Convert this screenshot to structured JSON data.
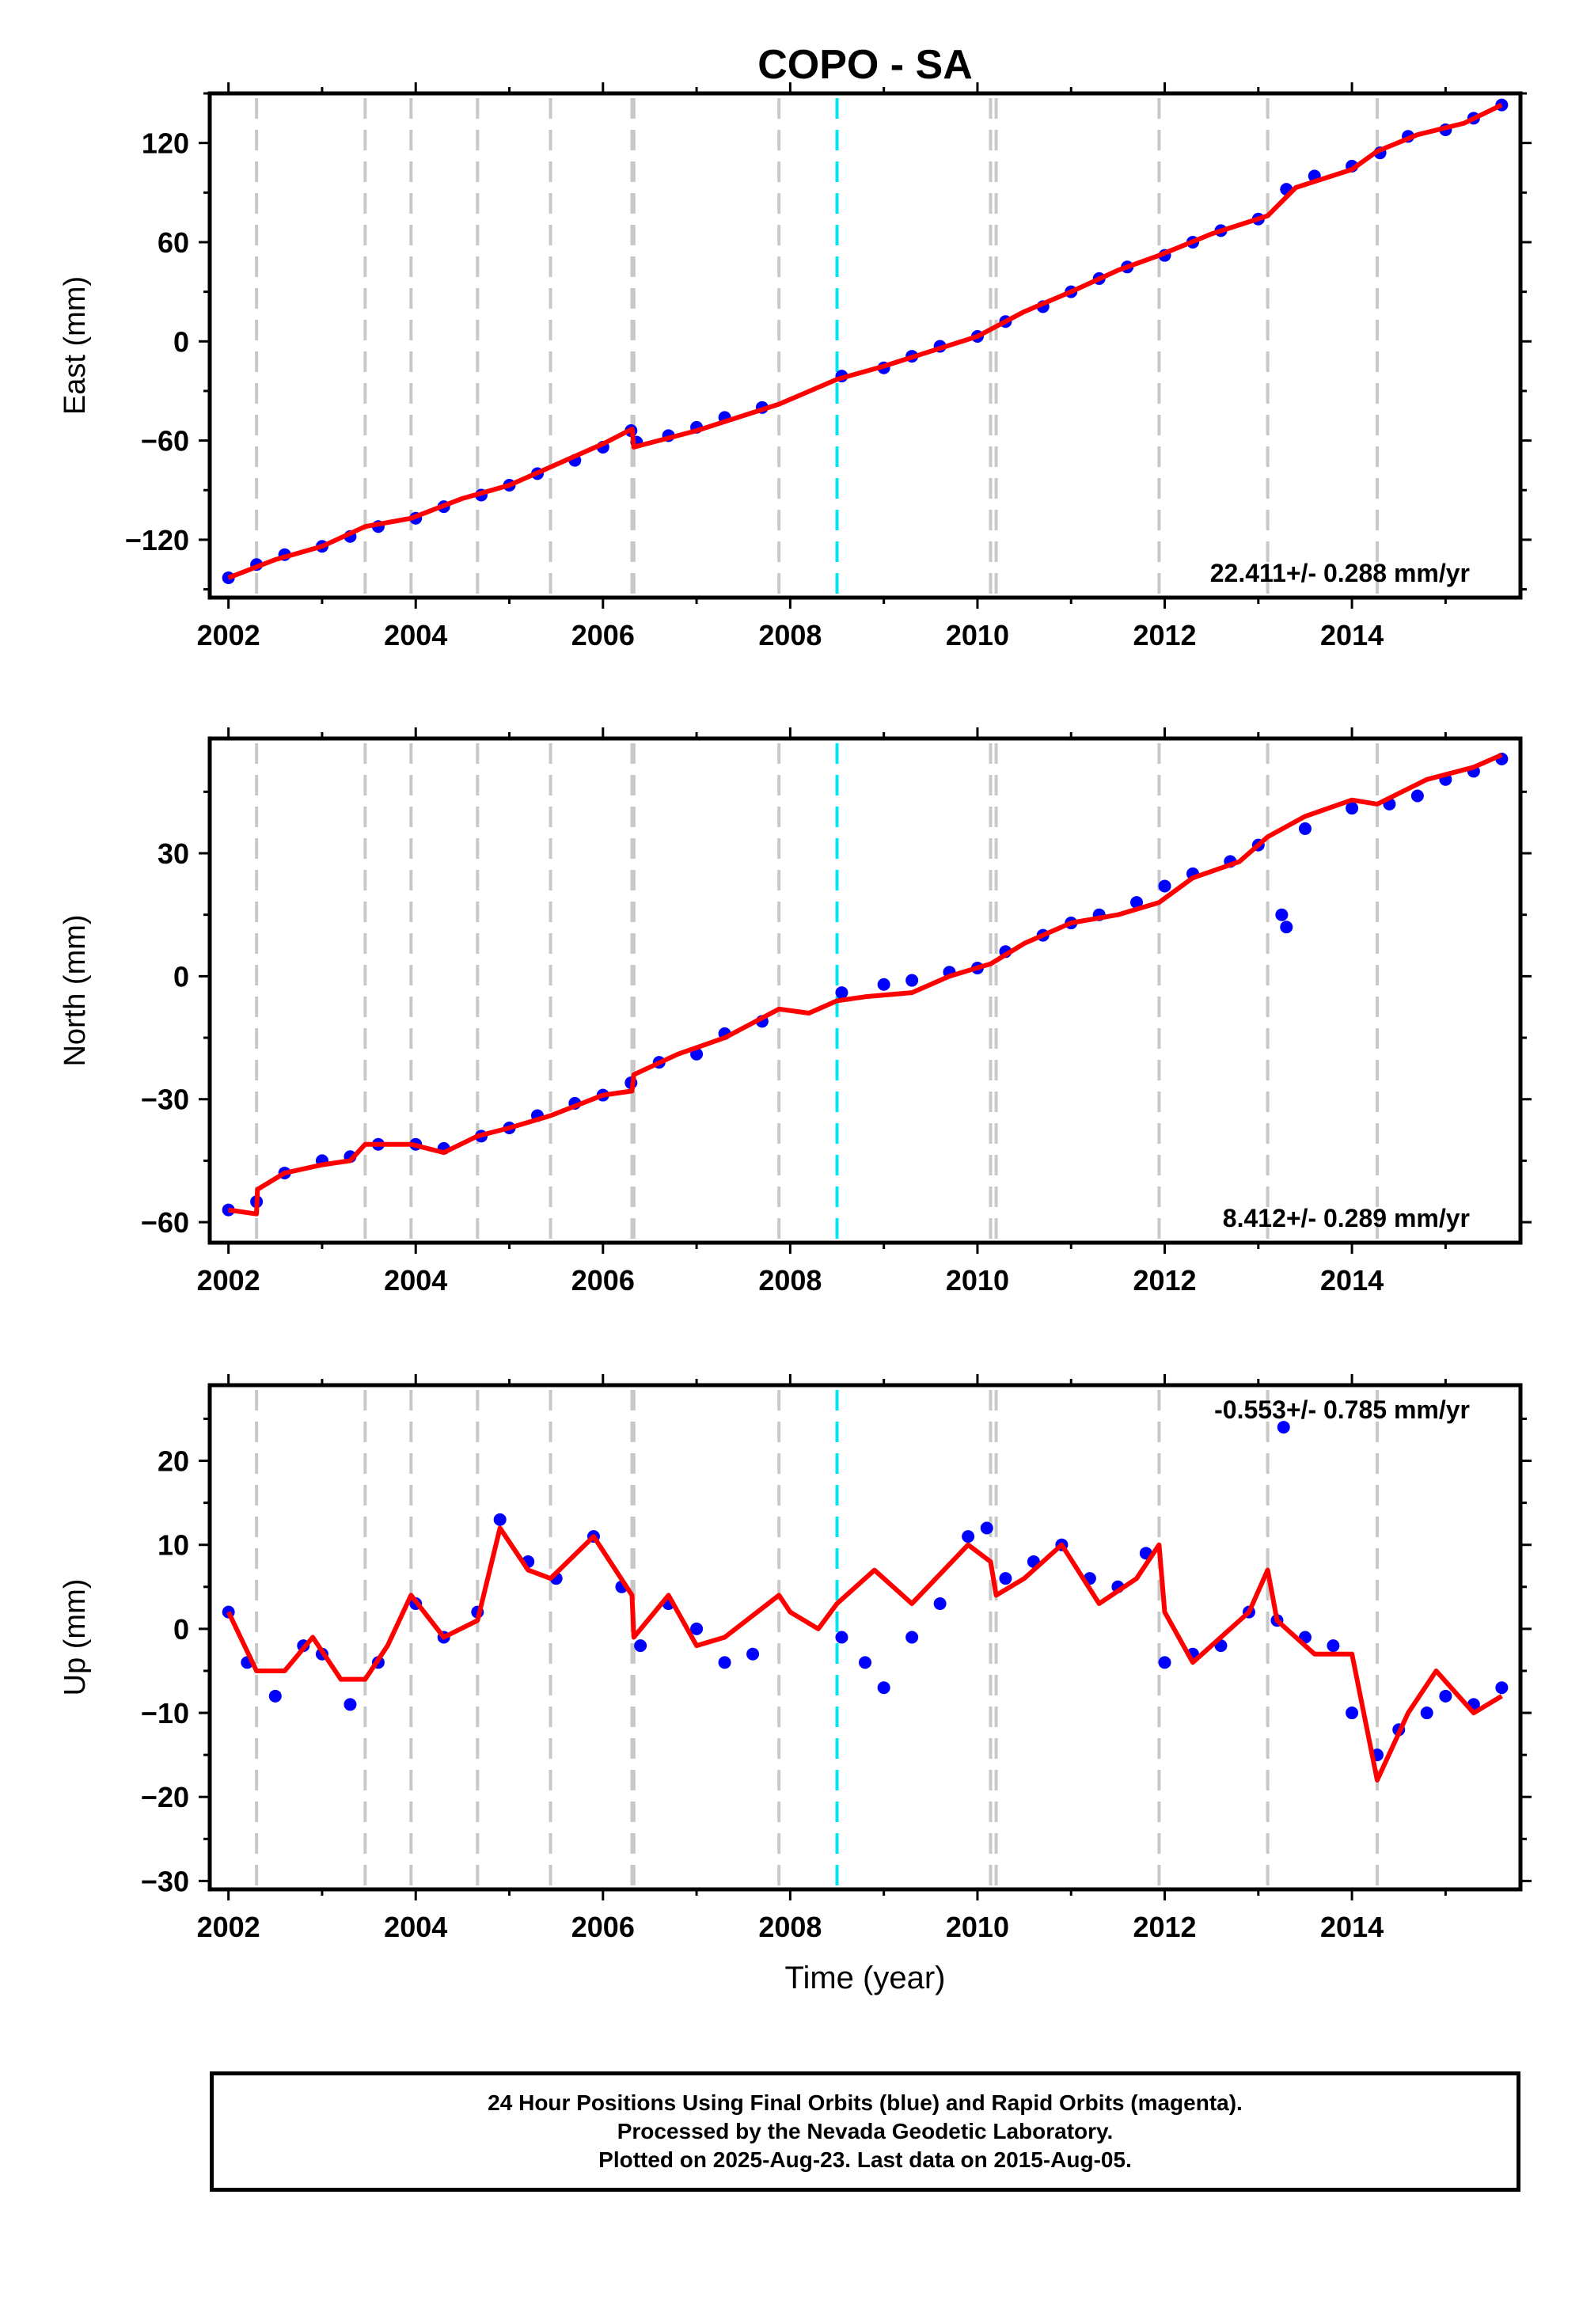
{
  "title": "COPO - SA",
  "colors": {
    "observations": "#0000ff",
    "model": "#ff0000",
    "event_line": "#c8c8c8",
    "equipment_line": "#00e5ee",
    "frame": "#000000"
  },
  "x_axis": {
    "label": "Time (year)",
    "range": [
      2001.8,
      2015.8
    ],
    "ticks": [
      2002,
      2004,
      2006,
      2008,
      2010,
      2012,
      2014
    ],
    "tick_labels": [
      "2002",
      "2004",
      "2006",
      "2008",
      "2010",
      "2012",
      "2014"
    ]
  },
  "event_lines": [
    2002.3,
    2003.46,
    2003.95,
    2004.66,
    2005.44,
    2006.31,
    2006.33,
    2007.88,
    2010.14,
    2010.2,
    2011.94,
    2013.1,
    2014.27
  ],
  "equipment_lines": [
    2008.5
  ],
  "footer": {
    "line1": "24 Hour Positions Using Final Orbits (blue) and Rapid Orbits (magenta).",
    "line2": "Processed by the Nevada Geodetic Laboratory.",
    "line3": "Plotted on 2025-Aug-23. Last data on 2015-Aug-05."
  },
  "chart_data": [
    {
      "type": "scatter",
      "component": "east",
      "ylabel": "East (mm)",
      "ylim": [
        -155,
        150
      ],
      "yticks": [
        -120,
        -60,
        0,
        60,
        120
      ],
      "ytick_labels": [
        "−120",
        "−60",
        "0",
        "60",
        "120"
      ],
      "rate_label": "22.411+/- 0.288 mm/yr",
      "rate_position": "bottom-right",
      "series": [
        {
          "name": "observations",
          "x": [
            2002.0,
            2002.3,
            2002.6,
            2003.0,
            2003.3,
            2003.6,
            2004.0,
            2004.3,
            2004.7,
            2005.0,
            2005.3,
            2005.7,
            2006.0,
            2006.3,
            2006.36,
            2006.7,
            2007.0,
            2007.3,
            2007.7,
            2008.55,
            2009.0,
            2009.3,
            2009.6,
            2010.0,
            2010.3,
            2010.7,
            2011.0,
            2011.3,
            2011.6,
            2012.0,
            2012.3,
            2012.6,
            2013.0,
            2013.3,
            2013.6,
            2014.0,
            2014.3,
            2014.6,
            2015.0,
            2015.3,
            2015.6
          ],
          "y": [
            -143,
            -135,
            -129,
            -124,
            -118,
            -112,
            -107,
            -100,
            -93,
            -87,
            -80,
            -72,
            -64,
            -54,
            -61,
            -57,
            -52,
            -46,
            -40,
            -21,
            -16,
            -9,
            -3,
            3,
            12,
            21,
            30,
            38,
            45,
            52,
            60,
            67,
            74,
            92,
            100,
            106,
            114,
            124,
            128,
            135,
            143
          ]
        },
        {
          "name": "model",
          "x": [
            2002.0,
            2002.5,
            2003.0,
            2003.46,
            2003.95,
            2004.5,
            2005.0,
            2005.44,
            2006.0,
            2006.31,
            2006.33,
            2007.0,
            2007.88,
            2008.5,
            2009.0,
            2009.5,
            2010.0,
            2010.5,
            2011.0,
            2011.5,
            2011.94,
            2012.5,
            2013.1,
            2013.4,
            2014.0,
            2014.27,
            2014.7,
            2015.2,
            2015.6
          ],
          "y": [
            -143,
            -132,
            -124,
            -112,
            -107,
            -95,
            -87,
            -76,
            -62,
            -53,
            -64,
            -54,
            -38,
            -23,
            -15,
            -6,
            3,
            18,
            30,
            43,
            52,
            65,
            76,
            93,
            104,
            115,
            125,
            132,
            143
          ]
        }
      ]
    },
    {
      "type": "scatter",
      "component": "north",
      "ylabel": "North (mm)",
      "ylim": [
        -65,
        58
      ],
      "yticks": [
        -60,
        -30,
        0,
        30
      ],
      "ytick_labels": [
        "−60",
        "−30",
        "0",
        "30"
      ],
      "rate_label": "8.412+/- 0.289 mm/yr",
      "rate_position": "bottom-right",
      "series": [
        {
          "name": "observations",
          "x": [
            2002.0,
            2002.3,
            2002.6,
            2003.0,
            2003.3,
            2003.6,
            2004.0,
            2004.3,
            2004.7,
            2005.0,
            2005.3,
            2005.7,
            2006.0,
            2006.3,
            2006.6,
            2007.0,
            2007.3,
            2007.7,
            2008.55,
            2009.0,
            2009.3,
            2009.7,
            2010.0,
            2010.3,
            2010.7,
            2011.0,
            2011.3,
            2011.7,
            2012.0,
            2012.3,
            2012.7,
            2013.0,
            2013.25,
            2013.3,
            2013.5,
            2014.0,
            2014.4,
            2014.7,
            2015.0,
            2015.3,
            2015.6
          ],
          "y": [
            -57,
            -55,
            -48,
            -45,
            -44,
            -41,
            -41,
            -42,
            -39,
            -37,
            -34,
            -31,
            -29,
            -26,
            -21,
            -19,
            -14,
            -11,
            -4,
            -2,
            -1,
            1,
            2,
            6,
            10,
            13,
            15,
            18,
            22,
            25,
            28,
            32,
            15,
            12,
            36,
            41,
            42,
            44,
            48,
            50,
            53
          ]
        },
        {
          "name": "model",
          "x": [
            2002.0,
            2002.3,
            2002.31,
            2002.6,
            2003.0,
            2003.3,
            2003.46,
            2003.95,
            2004.3,
            2004.66,
            2005.0,
            2005.44,
            2006.0,
            2006.31,
            2006.33,
            2006.8,
            2007.3,
            2007.88,
            2008.2,
            2008.5,
            2008.8,
            2009.3,
            2009.7,
            2010.14,
            2010.5,
            2011.0,
            2011.5,
            2011.94,
            2012.3,
            2012.8,
            2013.1,
            2013.5,
            2014.0,
            2014.27,
            2014.8,
            2015.3,
            2015.6
          ],
          "y": [
            -57,
            -58,
            -52,
            -48,
            -46,
            -45,
            -41,
            -41,
            -43,
            -39,
            -37,
            -34,
            -29,
            -28,
            -24,
            -19,
            -15,
            -8,
            -9,
            -6,
            -5,
            -4,
            0,
            3,
            8,
            13,
            15,
            18,
            24,
            28,
            34,
            39,
            43,
            42,
            48,
            51,
            54
          ]
        }
      ]
    },
    {
      "type": "scatter",
      "component": "up",
      "ylabel": "Up (mm)",
      "ylim": [
        -31,
        29
      ],
      "yticks": [
        -30,
        -20,
        -10,
        0,
        10,
        20
      ],
      "ytick_labels": [
        "−30",
        "−20",
        "−10",
        "0",
        "10",
        "20"
      ],
      "rate_label": "-0.553+/- 0.785 mm/yr",
      "rate_position": "top-right",
      "series": [
        {
          "name": "observations",
          "x": [
            2002.0,
            2002.2,
            2002.5,
            2002.8,
            2003.0,
            2003.3,
            2003.6,
            2004.0,
            2004.3,
            2004.66,
            2004.9,
            2005.2,
            2005.5,
            2005.9,
            2006.2,
            2006.4,
            2006.7,
            2007.0,
            2007.3,
            2007.6,
            2008.55,
            2008.8,
            2009.0,
            2009.3,
            2009.6,
            2009.9,
            2010.1,
            2010.3,
            2010.6,
            2010.9,
            2011.2,
            2011.5,
            2011.8,
            2012.0,
            2012.3,
            2012.6,
            2012.9,
            2013.2,
            2013.27,
            2013.5,
            2013.8,
            2014.0,
            2014.27,
            2014.5,
            2014.8,
            2015.0,
            2015.3,
            2015.6
          ],
          "y": [
            2,
            -4,
            -8,
            -2,
            -3,
            -9,
            -4,
            3,
            -1,
            2,
            13,
            8,
            6,
            11,
            5,
            -2,
            3,
            0,
            -4,
            -3,
            -1,
            -4,
            -7,
            -1,
            3,
            11,
            12,
            6,
            8,
            10,
            6,
            5,
            9,
            -4,
            -3,
            -2,
            2,
            1,
            24,
            -1,
            -2,
            -10,
            -15,
            -12,
            -10,
            -8,
            -9,
            -7
          ]
        },
        {
          "name": "model",
          "x": [
            2002.0,
            2002.3,
            2002.6,
            2002.9,
            2003.2,
            2003.46,
            2003.7,
            2003.95,
            2004.3,
            2004.66,
            2004.9,
            2005.2,
            2005.44,
            2005.9,
            2006.31,
            2006.33,
            2006.7,
            2007.0,
            2007.3,
            2007.88,
            2008.0,
            2008.3,
            2008.5,
            2008.9,
            2009.3,
            2009.9,
            2010.14,
            2010.2,
            2010.5,
            2010.9,
            2011.3,
            2011.7,
            2011.94,
            2012.0,
            2012.3,
            2012.9,
            2013.1,
            2013.2,
            2013.6,
            2014.0,
            2014.27,
            2014.6,
            2014.9,
            2015.3,
            2015.6
          ],
          "y": [
            2,
            -5,
            -5,
            -1,
            -6,
            -6,
            -2,
            4,
            -1,
            1,
            12,
            7,
            6,
            11,
            4,
            -1,
            4,
            -2,
            -1,
            4,
            2,
            0,
            3,
            7,
            3,
            10,
            8,
            4,
            6,
            10,
            3,
            6,
            10,
            2,
            -4,
            2,
            7,
            1,
            -3,
            -3,
            -18,
            -10,
            -5,
            -10,
            -8
          ]
        }
      ]
    }
  ]
}
